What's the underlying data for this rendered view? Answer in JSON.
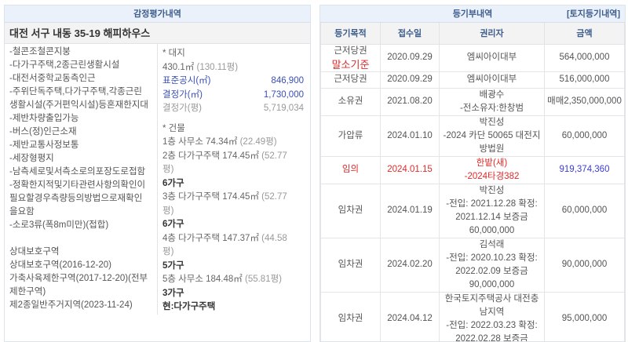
{
  "left": {
    "header": "감정평가내역",
    "address": "대전 서구 내동 35-19 해피하우스",
    "features": [
      "-철콘조철콘지붕",
      "-다가구주택,2종근린생활시설",
      "-대전서중학교동측인근",
      "-주위단독주택,다가구주택,각종근린",
      "생활시설(주거편익시설)등혼재한지대",
      "-제반차량출입가능",
      "-버스(정)인근소재",
      "-제반교통사정보통",
      "-세장형평지",
      "-남측세로및서측소로의포장도로접함",
      "-정확한지적및기타관련사항의확인이",
      "필요할경우측량등의방법으로재확인",
      "을요함",
      "-소로3류(폭8m미만)(접합)"
    ],
    "zones": [
      "상대보호구역",
      "상대보호구역(2016-12-20)",
      "가축사육제한구역(2017-12-20)(전부",
      "제한구역)",
      "제2종일반주거지역(2023-11-24)"
    ],
    "land": {
      "title": "* 대지",
      "area": "430.1㎡",
      "area_pyeong": "(130.11평)",
      "std_label": "표준공시(㎡)",
      "std_value": "846,900",
      "dec_label": "결정가(㎡)",
      "dec_value": "1,730,000",
      "decp_label": "결정가(평)",
      "decp_value": "5,719,034"
    },
    "building": {
      "title": "* 건물",
      "floors": [
        {
          "text": "1층 사무소 74.34㎡",
          "pyeong": "(22.49평)",
          "units": ""
        },
        {
          "text": "2층 다가구주택 174.45㎡",
          "pyeong": "(52.77",
          "pyeong2": "평)",
          "units": "6가구"
        },
        {
          "text": "3층 다가구주택 174.45㎡",
          "pyeong": "(52.77",
          "pyeong2": "평)",
          "units": "6가구"
        },
        {
          "text": "4층 다가구주택 147.37㎡",
          "pyeong": "(44.58",
          "pyeong2": "평)",
          "units": "5가구"
        },
        {
          "text": "5층 사무소 184.48㎡",
          "pyeong": "(55.81평)",
          "units": "3가구"
        }
      ],
      "current": "현:다가구주택"
    }
  },
  "right": {
    "header": "등기부내역",
    "land_link": "[토지등기내역]",
    "columns": [
      "등기목적",
      "접수일",
      "권리자",
      "금액"
    ],
    "rows": [
      {
        "type": [
          "근저당권",
          "말소기준"
        ],
        "date": "2020.09.29",
        "holder": [
          "엠씨아이대부"
        ],
        "amount": "564,000,000"
      },
      {
        "type": [
          "근저당권"
        ],
        "date": "2020.09.29",
        "holder": [
          "엠씨아이대부"
        ],
        "amount": "516,000,000"
      },
      {
        "type": [
          "소유권"
        ],
        "date": "2021.08.20",
        "holder": [
          "배광수",
          "-전소유자:한창범"
        ],
        "amount": "매매2,350,000,000"
      },
      {
        "type": [
          "가압류"
        ],
        "date": "2024.01.10",
        "holder": [
          "박진성",
          "-2024 카단 50065 대전지",
          "방법원"
        ],
        "amount": "60,000,000"
      },
      {
        "type": [
          "임의"
        ],
        "date": "2024.01.15",
        "holder": [
          "한밭(새)",
          "-2024타경382"
        ],
        "amount": "919,374,360",
        "highlight": true
      },
      {
        "type": [
          "임차권"
        ],
        "date": "2024.01.19",
        "holder": [
          "박진성",
          "-전입: 2021.12.28 확정:",
          "2021.12.14 보증금",
          "60,000,000"
        ],
        "amount": "60,000,000"
      },
      {
        "type": [
          "임차권"
        ],
        "date": "2024.02.20",
        "holder": [
          "김석래",
          "-전입: 2020.10.23 확정:",
          "2022.02.09 보증금",
          "90,000,000"
        ],
        "amount": "90,000,000"
      },
      {
        "type": [
          "임차권"
        ],
        "date": "2024.04.12",
        "holder": [
          "한국토지주택공사 대전충",
          "남지역",
          "-전입: 2022.03.23 확정:",
          "2022.02.28 보증금"
        ],
        "amount": "95,000,000"
      }
    ],
    "colors": {
      "red": "#e02a2a",
      "blue": "#3b3bd8"
    }
  }
}
